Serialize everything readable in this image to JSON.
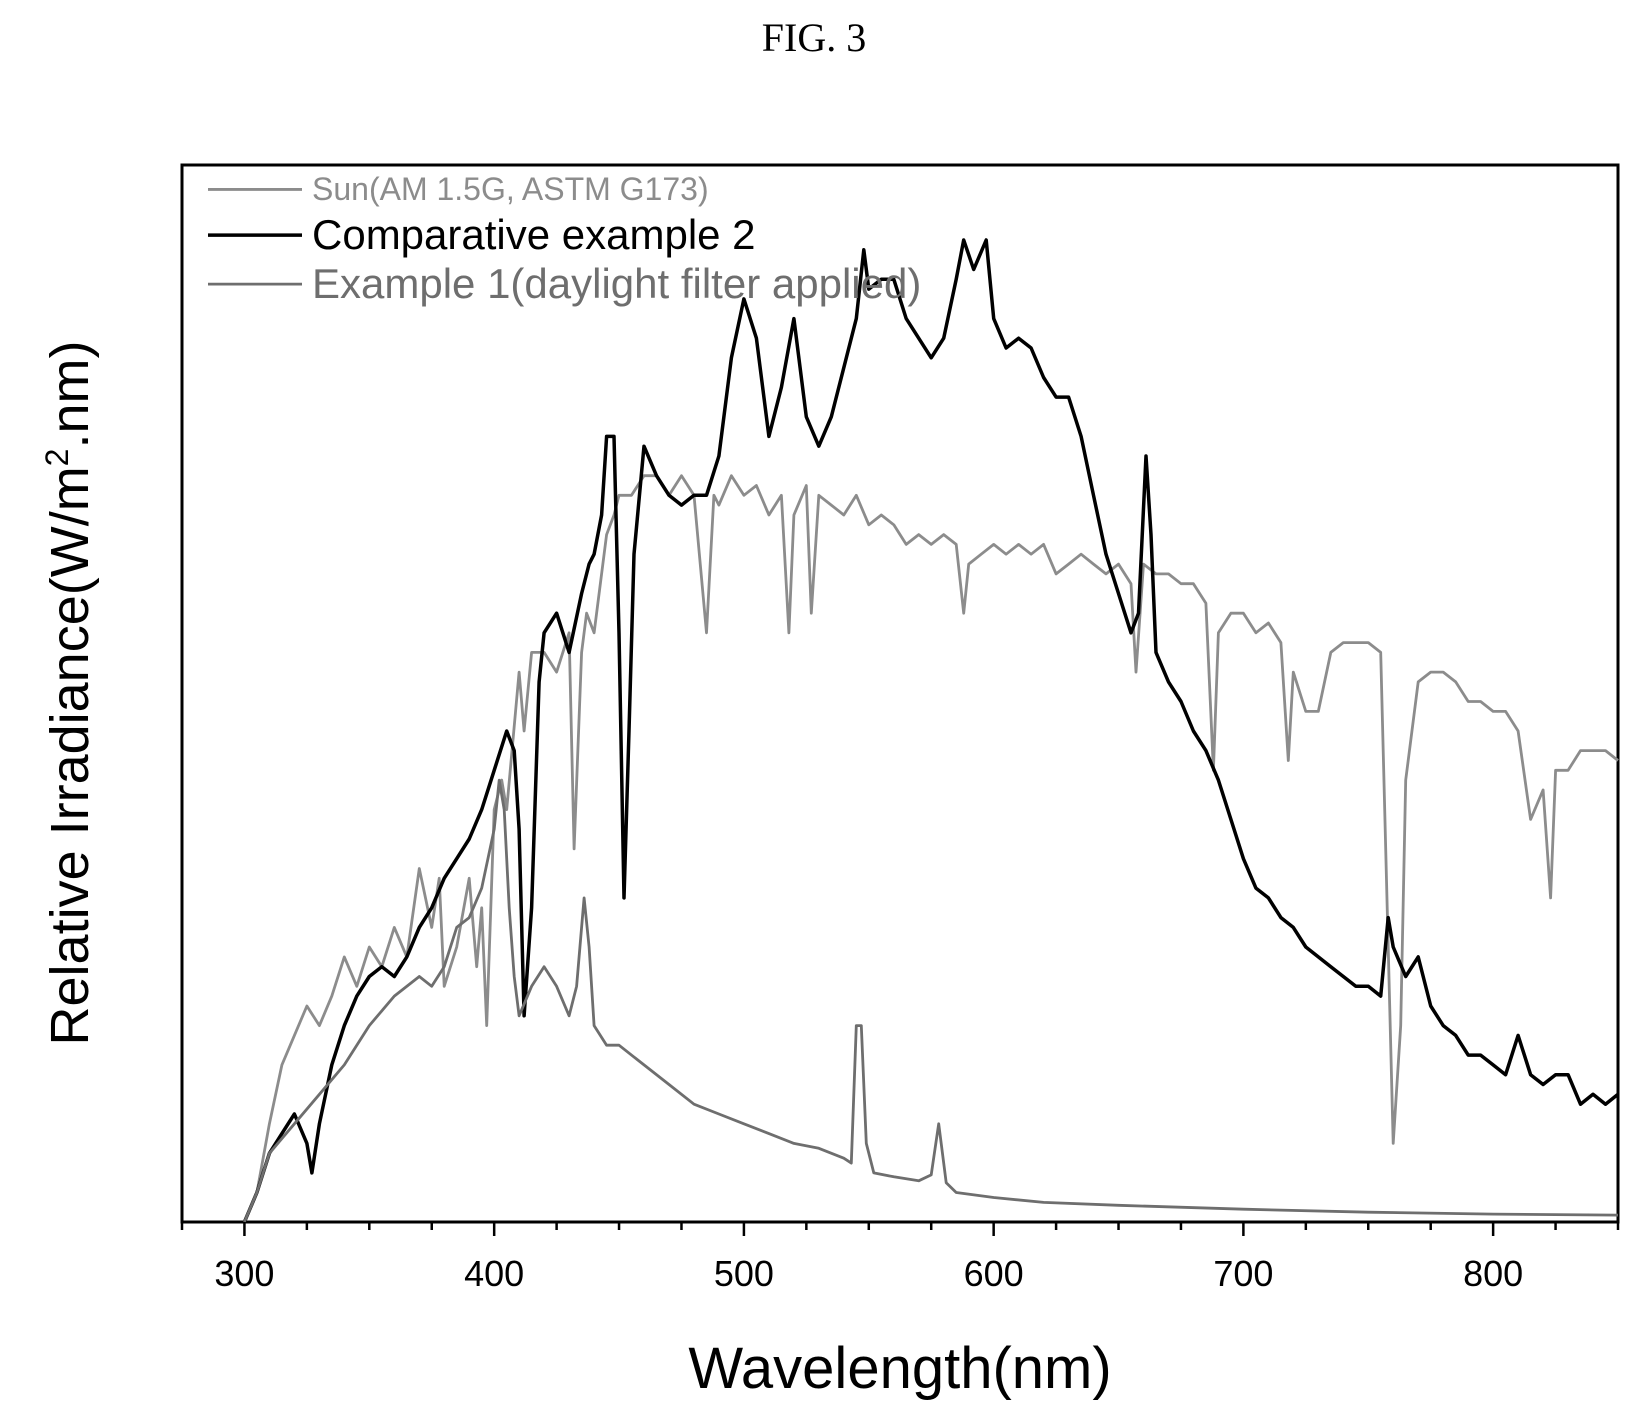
{
  "figure_label": "FIG. 3",
  "chart_data": {
    "type": "line",
    "title": "",
    "xlabel": "Wavelength(nm)",
    "ylabel_main": "Relative Irradiance(W/m",
    "ylabel_sup": "2",
    "ylabel_tail": ".nm)",
    "xlim": [
      275,
      850
    ],
    "ylim": [
      0,
      1.0
    ],
    "x_ticks": [
      300,
      400,
      500,
      600,
      700,
      800
    ],
    "x_minor_step": 25,
    "y_ticks_shown": false,
    "grid": false,
    "legend_position": "top-left",
    "series": [
      {
        "name": "Sun(AM 1.5G, ASTM G173)",
        "color": "#8c8c8c",
        "points": [
          [
            300,
            0.0
          ],
          [
            305,
            0.03
          ],
          [
            310,
            0.1
          ],
          [
            315,
            0.16
          ],
          [
            320,
            0.19
          ],
          [
            325,
            0.22
          ],
          [
            330,
            0.2
          ],
          [
            335,
            0.23
          ],
          [
            340,
            0.27
          ],
          [
            345,
            0.24
          ],
          [
            350,
            0.28
          ],
          [
            355,
            0.26
          ],
          [
            360,
            0.3
          ],
          [
            365,
            0.27
          ],
          [
            370,
            0.36
          ],
          [
            375,
            0.3
          ],
          [
            378,
            0.35
          ],
          [
            380,
            0.24
          ],
          [
            385,
            0.28
          ],
          [
            390,
            0.35
          ],
          [
            393,
            0.26
          ],
          [
            395,
            0.32
          ],
          [
            397,
            0.2
          ],
          [
            400,
            0.42
          ],
          [
            403,
            0.45
          ],
          [
            405,
            0.42
          ],
          [
            410,
            0.56
          ],
          [
            412,
            0.5
          ],
          [
            415,
            0.58
          ],
          [
            420,
            0.58
          ],
          [
            425,
            0.56
          ],
          [
            430,
            0.6
          ],
          [
            432,
            0.38
          ],
          [
            435,
            0.58
          ],
          [
            437,
            0.62
          ],
          [
            440,
            0.6
          ],
          [
            445,
            0.7
          ],
          [
            448,
            0.72
          ],
          [
            450,
            0.74
          ],
          [
            455,
            0.74
          ],
          [
            460,
            0.76
          ],
          [
            465,
            0.76
          ],
          [
            470,
            0.74
          ],
          [
            475,
            0.76
          ],
          [
            480,
            0.74
          ],
          [
            485,
            0.6
          ],
          [
            488,
            0.74
          ],
          [
            490,
            0.73
          ],
          [
            495,
            0.76
          ],
          [
            500,
            0.74
          ],
          [
            505,
            0.75
          ],
          [
            510,
            0.72
          ],
          [
            515,
            0.74
          ],
          [
            518,
            0.6
          ],
          [
            520,
            0.72
          ],
          [
            525,
            0.75
          ],
          [
            527,
            0.62
          ],
          [
            530,
            0.74
          ],
          [
            535,
            0.73
          ],
          [
            540,
            0.72
          ],
          [
            545,
            0.74
          ],
          [
            550,
            0.71
          ],
          [
            555,
            0.72
          ],
          [
            560,
            0.71
          ],
          [
            565,
            0.69
          ],
          [
            570,
            0.7
          ],
          [
            575,
            0.69
          ],
          [
            580,
            0.7
          ],
          [
            585,
            0.69
          ],
          [
            588,
            0.62
          ],
          [
            590,
            0.67
          ],
          [
            595,
            0.68
          ],
          [
            600,
            0.69
          ],
          [
            605,
            0.68
          ],
          [
            610,
            0.69
          ],
          [
            615,
            0.68
          ],
          [
            620,
            0.69
          ],
          [
            625,
            0.66
          ],
          [
            630,
            0.67
          ],
          [
            635,
            0.68
          ],
          [
            640,
            0.67
          ],
          [
            645,
            0.66
          ],
          [
            650,
            0.67
          ],
          [
            655,
            0.65
          ],
          [
            657,
            0.56
          ],
          [
            660,
            0.67
          ],
          [
            665,
            0.66
          ],
          [
            670,
            0.66
          ],
          [
            675,
            0.65
          ],
          [
            680,
            0.65
          ],
          [
            685,
            0.63
          ],
          [
            688,
            0.46
          ],
          [
            690,
            0.6
          ],
          [
            695,
            0.62
          ],
          [
            700,
            0.62
          ],
          [
            705,
            0.6
          ],
          [
            710,
            0.61
          ],
          [
            715,
            0.59
          ],
          [
            718,
            0.47
          ],
          [
            720,
            0.56
          ],
          [
            725,
            0.52
          ],
          [
            730,
            0.52
          ],
          [
            735,
            0.58
          ],
          [
            740,
            0.59
          ],
          [
            745,
            0.59
          ],
          [
            750,
            0.59
          ],
          [
            755,
            0.58
          ],
          [
            760,
            0.08
          ],
          [
            763,
            0.2
          ],
          [
            765,
            0.45
          ],
          [
            770,
            0.55
          ],
          [
            775,
            0.56
          ],
          [
            780,
            0.56
          ],
          [
            785,
            0.55
          ],
          [
            790,
            0.53
          ],
          [
            795,
            0.53
          ],
          [
            800,
            0.52
          ],
          [
            805,
            0.52
          ],
          [
            810,
            0.5
          ],
          [
            815,
            0.41
          ],
          [
            820,
            0.44
          ],
          [
            823,
            0.33
          ],
          [
            825,
            0.46
          ],
          [
            830,
            0.46
          ],
          [
            835,
            0.48
          ],
          [
            840,
            0.48
          ],
          [
            845,
            0.48
          ],
          [
            850,
            0.47
          ]
        ]
      },
      {
        "name": "Comparative example 2",
        "color": "#000000",
        "points": [
          [
            300,
            0.0
          ],
          [
            305,
            0.03
          ],
          [
            310,
            0.07
          ],
          [
            315,
            0.09
          ],
          [
            320,
            0.11
          ],
          [
            325,
            0.08
          ],
          [
            327,
            0.05
          ],
          [
            330,
            0.1
          ],
          [
            335,
            0.16
          ],
          [
            340,
            0.2
          ],
          [
            345,
            0.23
          ],
          [
            350,
            0.25
          ],
          [
            355,
            0.26
          ],
          [
            360,
            0.25
          ],
          [
            365,
            0.27
          ],
          [
            370,
            0.3
          ],
          [
            375,
            0.32
          ],
          [
            380,
            0.35
          ],
          [
            385,
            0.37
          ],
          [
            390,
            0.39
          ],
          [
            395,
            0.42
          ],
          [
            400,
            0.46
          ],
          [
            405,
            0.5
          ],
          [
            408,
            0.48
          ],
          [
            410,
            0.4
          ],
          [
            412,
            0.21
          ],
          [
            415,
            0.32
          ],
          [
            418,
            0.55
          ],
          [
            420,
            0.6
          ],
          [
            425,
            0.62
          ],
          [
            430,
            0.58
          ],
          [
            435,
            0.64
          ],
          [
            438,
            0.67
          ],
          [
            440,
            0.68
          ],
          [
            443,
            0.72
          ],
          [
            445,
            0.8
          ],
          [
            448,
            0.8
          ],
          [
            450,
            0.6
          ],
          [
            452,
            0.33
          ],
          [
            454,
            0.5
          ],
          [
            456,
            0.68
          ],
          [
            460,
            0.79
          ],
          [
            465,
            0.76
          ],
          [
            470,
            0.74
          ],
          [
            475,
            0.73
          ],
          [
            480,
            0.74
          ],
          [
            485,
            0.74
          ],
          [
            490,
            0.78
          ],
          [
            495,
            0.88
          ],
          [
            500,
            0.94
          ],
          [
            505,
            0.9
          ],
          [
            510,
            0.8
          ],
          [
            515,
            0.85
          ],
          [
            520,
            0.92
          ],
          [
            525,
            0.82
          ],
          [
            530,
            0.79
          ],
          [
            535,
            0.82
          ],
          [
            540,
            0.87
          ],
          [
            545,
            0.92
          ],
          [
            548,
            0.99
          ],
          [
            550,
            0.95
          ],
          [
            555,
            0.96
          ],
          [
            560,
            0.96
          ],
          [
            565,
            0.92
          ],
          [
            570,
            0.9
          ],
          [
            575,
            0.88
          ],
          [
            580,
            0.9
          ],
          [
            585,
            0.96
          ],
          [
            588,
            1.0
          ],
          [
            592,
            0.97
          ],
          [
            597,
            1.0
          ],
          [
            600,
            0.92
          ],
          [
            605,
            0.89
          ],
          [
            610,
            0.9
          ],
          [
            615,
            0.89
          ],
          [
            620,
            0.86
          ],
          [
            625,
            0.84
          ],
          [
            630,
            0.84
          ],
          [
            635,
            0.8
          ],
          [
            640,
            0.74
          ],
          [
            645,
            0.68
          ],
          [
            650,
            0.64
          ],
          [
            655,
            0.6
          ],
          [
            658,
            0.62
          ],
          [
            661,
            0.78
          ],
          [
            663,
            0.7
          ],
          [
            665,
            0.58
          ],
          [
            670,
            0.55
          ],
          [
            675,
            0.53
          ],
          [
            680,
            0.5
          ],
          [
            685,
            0.48
          ],
          [
            690,
            0.45
          ],
          [
            695,
            0.41
          ],
          [
            700,
            0.37
          ],
          [
            705,
            0.34
          ],
          [
            710,
            0.33
          ],
          [
            715,
            0.31
          ],
          [
            720,
            0.3
          ],
          [
            725,
            0.28
          ],
          [
            730,
            0.27
          ],
          [
            735,
            0.26
          ],
          [
            740,
            0.25
          ],
          [
            745,
            0.24
          ],
          [
            750,
            0.24
          ],
          [
            755,
            0.23
          ],
          [
            758,
            0.31
          ],
          [
            760,
            0.28
          ],
          [
            765,
            0.25
          ],
          [
            770,
            0.27
          ],
          [
            775,
            0.22
          ],
          [
            780,
            0.2
          ],
          [
            785,
            0.19
          ],
          [
            790,
            0.17
          ],
          [
            795,
            0.17
          ],
          [
            800,
            0.16
          ],
          [
            805,
            0.15
          ],
          [
            810,
            0.19
          ],
          [
            815,
            0.15
          ],
          [
            820,
            0.14
          ],
          [
            825,
            0.15
          ],
          [
            830,
            0.15
          ],
          [
            835,
            0.12
          ],
          [
            840,
            0.13
          ],
          [
            845,
            0.12
          ],
          [
            850,
            0.13
          ]
        ]
      },
      {
        "name": "Example 1(daylight filter applied)",
        "color": "#6e6e6e",
        "points": [
          [
            300,
            0.0
          ],
          [
            305,
            0.03
          ],
          [
            310,
            0.07
          ],
          [
            320,
            0.1
          ],
          [
            330,
            0.13
          ],
          [
            340,
            0.16
          ],
          [
            350,
            0.2
          ],
          [
            360,
            0.23
          ],
          [
            370,
            0.25
          ],
          [
            375,
            0.24
          ],
          [
            380,
            0.26
          ],
          [
            385,
            0.3
          ],
          [
            390,
            0.31
          ],
          [
            395,
            0.34
          ],
          [
            400,
            0.4
          ],
          [
            402,
            0.45
          ],
          [
            404,
            0.42
          ],
          [
            406,
            0.32
          ],
          [
            408,
            0.25
          ],
          [
            410,
            0.21
          ],
          [
            415,
            0.24
          ],
          [
            420,
            0.26
          ],
          [
            425,
            0.24
          ],
          [
            430,
            0.21
          ],
          [
            433,
            0.24
          ],
          [
            436,
            0.33
          ],
          [
            438,
            0.28
          ],
          [
            440,
            0.2
          ],
          [
            445,
            0.18
          ],
          [
            450,
            0.18
          ],
          [
            460,
            0.16
          ],
          [
            470,
            0.14
          ],
          [
            480,
            0.12
          ],
          [
            490,
            0.11
          ],
          [
            500,
            0.1
          ],
          [
            510,
            0.09
          ],
          [
            520,
            0.08
          ],
          [
            530,
            0.075
          ],
          [
            540,
            0.065
          ],
          [
            543,
            0.06
          ],
          [
            545,
            0.2
          ],
          [
            547,
            0.2
          ],
          [
            549,
            0.08
          ],
          [
            552,
            0.05
          ],
          [
            560,
            0.046
          ],
          [
            570,
            0.042
          ],
          [
            575,
            0.048
          ],
          [
            578,
            0.1
          ],
          [
            581,
            0.04
          ],
          [
            585,
            0.03
          ],
          [
            600,
            0.025
          ],
          [
            620,
            0.02
          ],
          [
            650,
            0.017
          ],
          [
            700,
            0.013
          ],
          [
            750,
            0.01
          ],
          [
            800,
            0.008
          ],
          [
            850,
            0.007
          ]
        ]
      }
    ]
  }
}
